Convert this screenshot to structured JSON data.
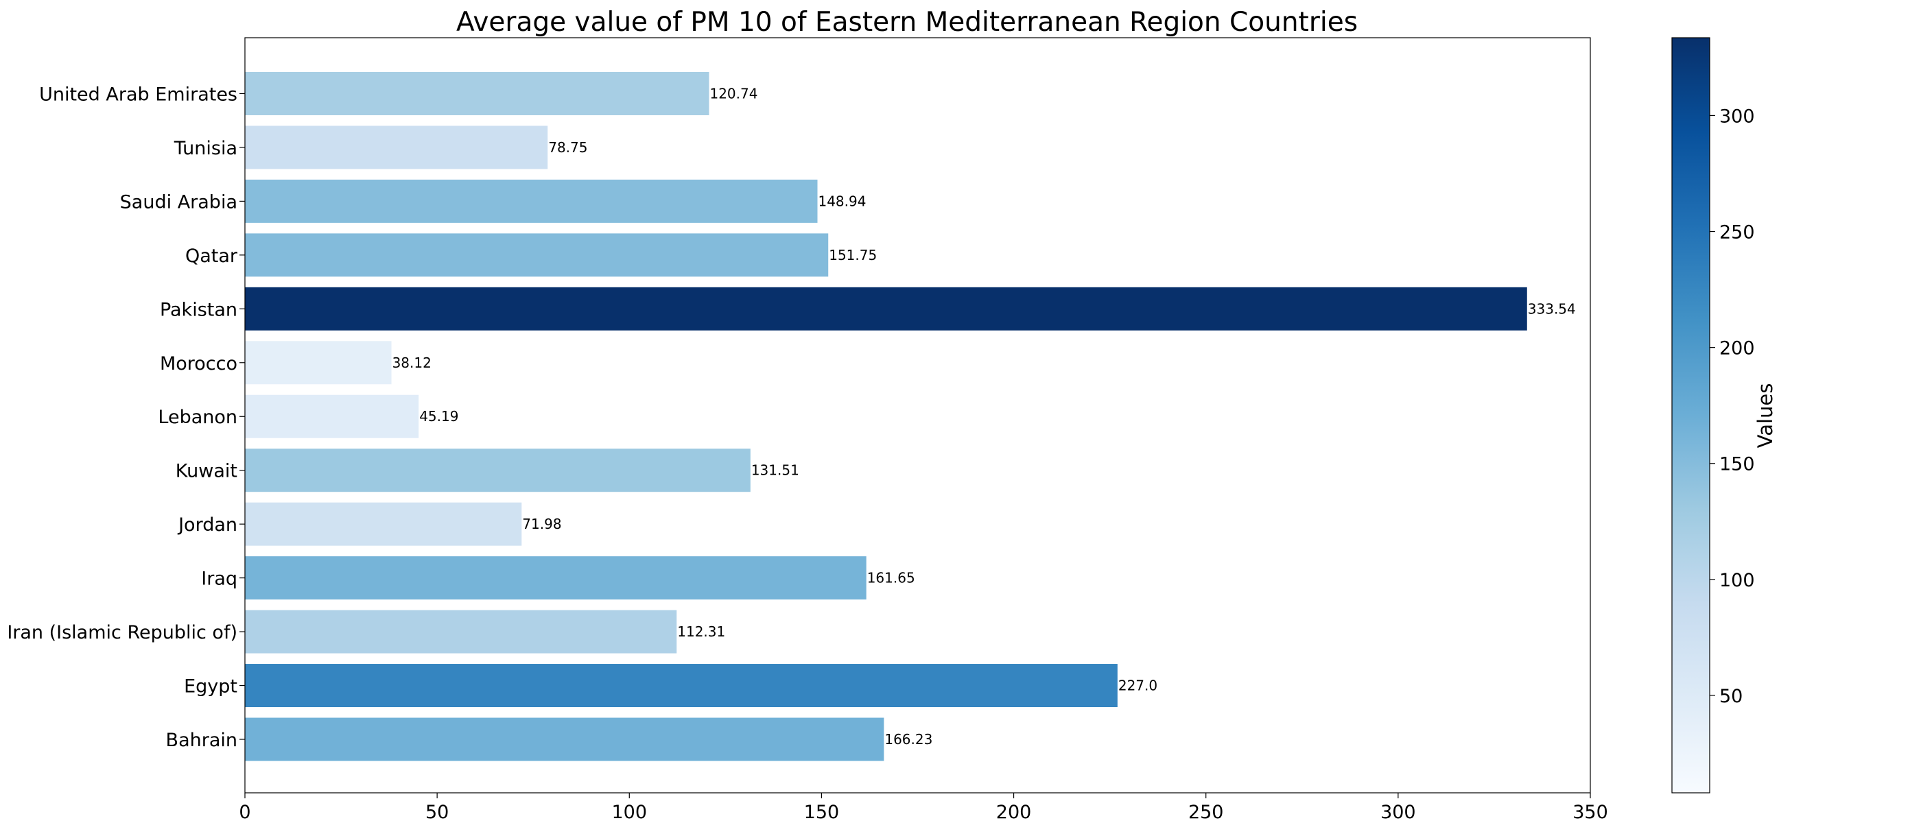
{
  "chart_data": {
    "type": "bar",
    "orientation": "horizontal",
    "title": "Average value of PM 10 of Eastern Mediterranean Region Countries",
    "xlabel": "",
    "ylabel": "",
    "categories": [
      "Bahrain",
      "Egypt",
      "Iran (Islamic Republic of)",
      "Iraq",
      "Jordan",
      "Kuwait",
      "Lebanon",
      "Morocco",
      "Pakistan",
      "Qatar",
      "Saudi Arabia",
      "Tunisia",
      "United Arab Emirates"
    ],
    "values": [
      166.23,
      227.0,
      112.31,
      161.65,
      71.98,
      131.51,
      45.19,
      38.12,
      333.54,
      151.75,
      148.94,
      78.75,
      120.74
    ],
    "data_labels": [
      "166.23",
      "227.0",
      "112.31",
      "161.65",
      "71.98",
      "131.51",
      "45.19",
      "38.12",
      "333.54",
      "151.75",
      "148.94",
      "78.75",
      "120.74"
    ],
    "xlim": [
      0,
      350
    ],
    "xticks": [
      0,
      50,
      100,
      150,
      200,
      250,
      300,
      350
    ],
    "grid": false,
    "colormap": "Blues",
    "colorbar": {
      "label": "Values",
      "range": [
        8,
        333.54
      ],
      "ticks": [
        50,
        100,
        150,
        200,
        250,
        300
      ]
    }
  }
}
